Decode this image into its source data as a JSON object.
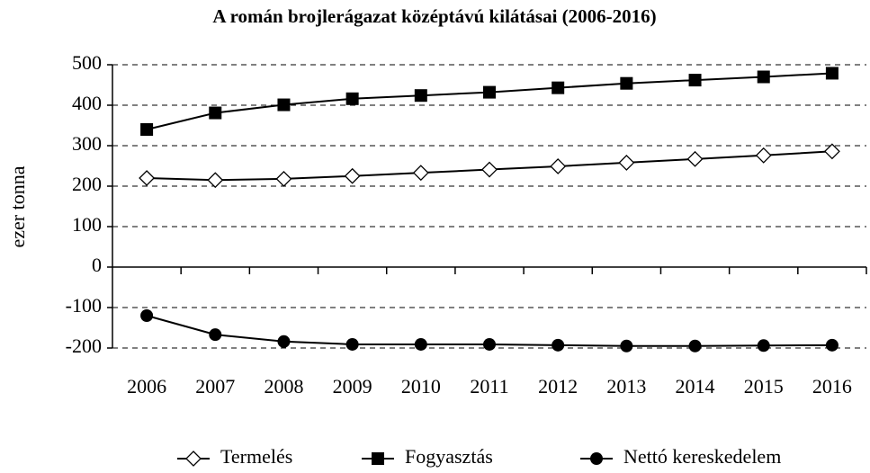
{
  "chart_data": {
    "type": "line",
    "title": "A román brojlerágazat középtávú kilátásai (2006-2016)",
    "ylabel": "ezer tonna",
    "categories": [
      "2006",
      "2007",
      "2008",
      "2009",
      "2010",
      "2011",
      "2012",
      "2013",
      "2014",
      "2015",
      "2016"
    ],
    "series": [
      {
        "name": "Termelés",
        "color": "#000000",
        "marker": "diamond",
        "values": [
          220,
          215,
          218,
          225,
          233,
          241,
          249,
          258,
          267,
          276,
          286
        ]
      },
      {
        "name": "Fogyasztás",
        "color": "#000000",
        "marker": "square",
        "values": [
          340,
          381,
          401,
          416,
          424,
          432,
          443,
          454,
          462,
          470,
          479
        ]
      },
      {
        "name": "Nettó kereskedelem",
        "color": "#000000",
        "marker": "circle",
        "values": [
          -120,
          -167,
          -184,
          -191,
          -191,
          -191,
          -193,
          -195,
          -195,
          -194,
          -193
        ]
      }
    ],
    "ylim": [
      -200,
      500
    ],
    "yticks": [
      -200,
      -100,
      0,
      100,
      200,
      300,
      400,
      500
    ],
    "grid": true,
    "legend": "bottom"
  }
}
